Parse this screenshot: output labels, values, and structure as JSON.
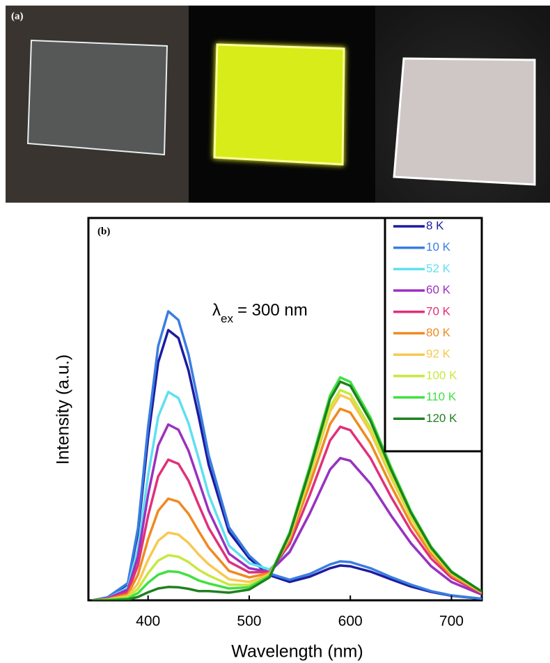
{
  "chart_data": {
    "type": "line",
    "panel_a_label": "(a)",
    "panel_b_label": "(b)",
    "annotation": {
      "symbol": "λ",
      "subscript": "ex",
      "text": "= 300 nm"
    },
    "x_label": "Wavelength (nm)",
    "y_label": "Intensity (a.u.)",
    "xlim": [
      341,
      730
    ],
    "xticks": [
      400,
      500,
      600,
      700
    ],
    "ylim": [
      0,
      100
    ],
    "x": [
      345,
      360,
      380,
      390,
      400,
      410,
      420,
      430,
      440,
      450,
      460,
      480,
      500,
      520,
      540,
      560,
      580,
      590,
      600,
      620,
      640,
      660,
      680,
      700,
      730
    ],
    "series": [
      {
        "name": "8 K",
        "color": "#1c1ca0",
        "values": [
          0,
          0.7,
          4.2,
          17.7,
          42.4,
          62.2,
          70.7,
          68.6,
          60.1,
          48.1,
          35.4,
          17.9,
          11.0,
          6.6,
          4.8,
          6.2,
          8.4,
          9.1,
          8.9,
          7.5,
          5.5,
          3.6,
          2.2,
          1.2,
          0.4
        ]
      },
      {
        "name": "10 K",
        "color": "#3a7de0",
        "values": [
          0,
          0.8,
          4.5,
          18.9,
          45.4,
          66.5,
          75.6,
          73.3,
          64.3,
          51.4,
          37.9,
          19.1,
          11.7,
          7.0,
          5.4,
          6.9,
          9.4,
          10.2,
          10.0,
          8.4,
          6.1,
          4.1,
          2.4,
          1.3,
          0.4
        ]
      },
      {
        "name": "52 K",
        "color": "#5ee0f0",
        "values": [
          0,
          0.5,
          3.3,
          13.6,
          32.7,
          48.0,
          54.5,
          52.9,
          46.3,
          37.1,
          27.6,
          14.3,
          9.7,
          8.1,
          12.8,
          22.8,
          34.2,
          37.2,
          36.5,
          30.5,
          22.3,
          14.9,
          8.9,
          4.8,
          1.5
        ]
      },
      {
        "name": "60 K",
        "color": "#9b30c0",
        "values": [
          0,
          0.5,
          2.8,
          11.5,
          27.6,
          40.5,
          46.0,
          44.6,
          39.1,
          31.3,
          23.4,
          12.2,
          8.4,
          7.4,
          12.6,
          22.8,
          34.2,
          37.2,
          36.5,
          30.5,
          22.3,
          14.9,
          8.9,
          4.8,
          1.5
        ]
      },
      {
        "name": "70 K",
        "color": "#e0307a",
        "values": [
          0,
          0.4,
          2.2,
          9.2,
          22.1,
          32.4,
          36.8,
          35.7,
          31.3,
          25.0,
          18.9,
          10.1,
          7.3,
          7.4,
          14.7,
          27.6,
          41.8,
          45.4,
          44.5,
          37.2,
          27.2,
          18.2,
          10.9,
          5.9,
          1.8
        ]
      },
      {
        "name": "80 K",
        "color": "#f08a20",
        "values": [
          0,
          0.3,
          1.6,
          6.7,
          16.0,
          23.4,
          26.6,
          25.8,
          22.6,
          18.1,
          13.8,
          7.7,
          6.0,
          7.1,
          15.8,
          30.4,
          46.1,
          50.1,
          49.1,
          41.1,
          30.1,
          20.0,
          12.0,
          6.5,
          2.0
        ]
      },
      {
        "name": "92 K",
        "color": "#f8c850",
        "values": [
          0,
          0.2,
          1.1,
          4.4,
          10.6,
          15.6,
          17.7,
          17.2,
          15.0,
          12.0,
          9.4,
          5.5,
          4.8,
          6.8,
          16.6,
          32.4,
          49.4,
          53.7,
          52.6,
          44.0,
          32.2,
          21.5,
          12.9,
          7.0,
          2.1
        ]
      },
      {
        "name": "100 K",
        "color": "#c8e840",
        "values": [
          0,
          0.1,
          0.7,
          3.0,
          7.1,
          10.4,
          11.8,
          11.4,
          10.0,
          8.0,
          6.5,
          4.1,
          4.0,
          6.4,
          16.9,
          33.1,
          50.6,
          55.0,
          53.9,
          45.1,
          33.0,
          22.0,
          13.2,
          7.2,
          2.2
        ]
      },
      {
        "name": "110 K",
        "color": "#40e040",
        "values": [
          0,
          0.1,
          0.5,
          1.9,
          4.6,
          6.7,
          7.6,
          7.4,
          6.5,
          5.2,
          4.4,
          3.1,
          3.4,
          6.4,
          17.7,
          35.1,
          53.6,
          58.3,
          57.1,
          47.8,
          35.0,
          23.3,
          14.0,
          7.6,
          2.3
        ]
      },
      {
        "name": "120 K",
        "color": "#208020",
        "values": [
          0,
          0,
          0.2,
          0.9,
          2.1,
          3.1,
          3.5,
          3.4,
          3.0,
          2.4,
          2.4,
          2.0,
          2.8,
          6.0,
          17.3,
          34.3,
          52.6,
          57.2,
          56.1,
          46.9,
          34.3,
          22.9,
          13.7,
          7.4,
          2.3
        ]
      }
    ]
  }
}
